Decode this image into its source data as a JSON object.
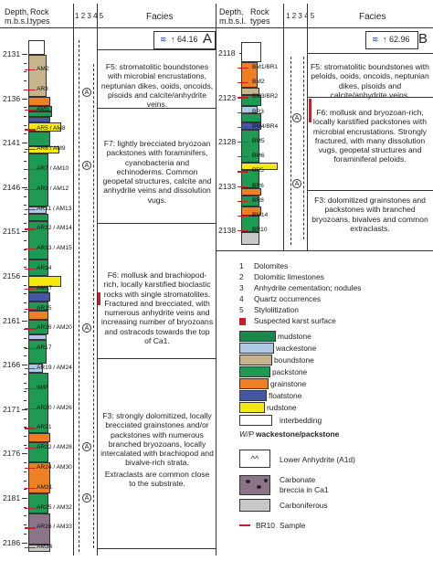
{
  "header": {
    "depth_label_1": "Depth,",
    "depth_label_2": "m.b.s.l.",
    "rock_label_1": "Rock",
    "rock_label_2": "types",
    "col_nums": [
      "1",
      "2",
      "3",
      "4",
      "5"
    ],
    "facies_label": "Facies"
  },
  "wellA": {
    "tag_value": "64.16",
    "tag_letter": "A",
    "depths": [
      "2131",
      "2136",
      "2141",
      "2146",
      "2151",
      "2156",
      "2161",
      "2166",
      "2171",
      "2176",
      "2181",
      "2186"
    ],
    "samples": [
      "AM2",
      "AR3",
      "AM5",
      "AR5 / AM8",
      "AR6 / AM9",
      "AR7 / AM10",
      "AR9 / AM12",
      "AR11 / AM13",
      "AR12 / AM14",
      "AR13 / AM15",
      "AR14",
      "AM17",
      "AR15",
      "AR16 / AM20",
      "AR17",
      "AR19 / AM24",
      "W/P",
      "AR20 / AM26",
      "AR21",
      "AR22 / AM28",
      "AR24 / AM30",
      "AM31",
      "AR25 / AM32",
      "AR26 / AM33",
      "AM34"
    ],
    "facies": [
      "F5: stromatolitic boundstones with microbial encrustations, neptunian dikes, ooids, oncoids, pisoids and calcite/anhydrite veins.",
      "F7: lightly brecciated bryozoan packstones with foraminifers, cyanobacteria and echinoderms. Common geopetal structures, calcite and anhydrite veins and dissolution vugs.",
      "F6: mollusk and brachiopod-rich, locally karstified bioclastic rocks with single stromatolites. Fractured and brecciated, with numerous anhydrite veins and increasing number of bryozoans and ostracods towards the top of Ca1.",
      "F3: strongly dolomitized, locally brecciated grainstones and/or packstones with numerous branched bryozoans, locally intercalated with brachiopod and bivalve-rich strata.",
      "Extraclasts are common close to the substrate."
    ]
  },
  "wellB": {
    "tag_value": "62.96",
    "tag_letter": "B",
    "depths": [
      "2118",
      "2123",
      "2128",
      "2133",
      "2138"
    ],
    "samples": [
      "BM1/BR1",
      "BM2",
      "BM3/BR2",
      "BR3",
      "BM4/BR4",
      "BM5",
      "BM6",
      "BR5",
      "BR6",
      "BR8",
      "BM14",
      "BR10"
    ],
    "facies": [
      "F5: stromatolitic boundstones with peloids, ooids, oncoids, neptunian dikes, pisoids and calcite/anhydrite veins.",
      "F6: mollusk and bryozoan-rich, locally karstified packstones with microbial encrustations. Strongly fractured, with many dissolution vugs, geopetal structures and foraminiferal peloids.",
      "F3: dolomitized grainstones and packstones with branched bryozoans, bivalves and common extraclasts."
    ]
  },
  "legend": {
    "numbered": [
      {
        "num": "1",
        "text": "Dolomites"
      },
      {
        "num": "2",
        "text": "Dolomitic limestones"
      },
      {
        "num": "3",
        "text": "Anhydrite cementation; nodules"
      },
      {
        "num": "4",
        "text": "Quartz occurrences"
      },
      {
        "num": "5",
        "text": "Stylolitization"
      },
      {
        "num": "",
        "text": "Suspected karst surface"
      }
    ],
    "rocks": [
      {
        "name": "mudstone",
        "color": "#1a8a4c"
      },
      {
        "name": "wackestone",
        "color": "#aec8e6"
      },
      {
        "name": "boundstone",
        "color": "#c7b48c"
      },
      {
        "name": "packstone",
        "color": "#1f9a52"
      },
      {
        "name": "grainstone",
        "color": "#ee7f23"
      },
      {
        "name": "floatstone",
        "color": "#4558a6"
      },
      {
        "name": "rudstone",
        "color": "#f4ea0f"
      }
    ],
    "interbedding": "interbedding",
    "wp_label": "W/P",
    "wp_text": "wackestone/packstone",
    "anhydrite": "Lower Anhydrite (A1d)",
    "breccia_1": "Carbonate",
    "breccia_2": "breccia in Ca1",
    "carboniferous": "Carboniferous",
    "sample": "BR10",
    "sample_word": "Sample",
    "anhydrite_symbol": "A"
  },
  "colors": {
    "mudstone": "#1a8a4c",
    "packstone": "#1f9a52",
    "grainstone": "#ee7f23",
    "boundstone": "#c7b48c",
    "wackestone": "#aec8e6",
    "floatstone": "#4558a6",
    "rudstone": "#f4ea0f",
    "karst": "#c8202c"
  }
}
